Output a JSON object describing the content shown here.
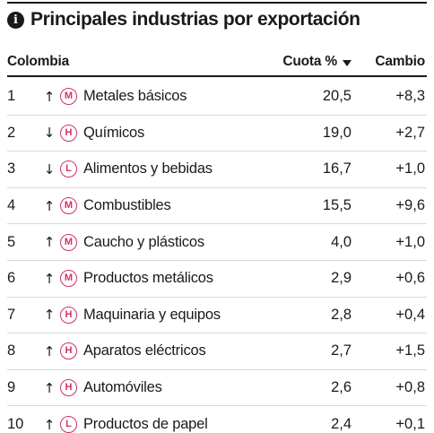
{
  "title": "Principales industrias por exportación",
  "header": {
    "country": "Colombia",
    "share_label": "Cuota %",
    "change_label": "Cambio"
  },
  "colors": {
    "badge": "#d0306a",
    "text": "#1a1a1a",
    "rule": "#d9d9d9"
  },
  "rows": [
    {
      "rank": "1",
      "arrow": "↑",
      "badge": "M",
      "name": "Metales básicos",
      "share": "20,5",
      "change": "+8,3"
    },
    {
      "rank": "2",
      "arrow": "↓",
      "badge": "H",
      "name": "Químicos",
      "share": "19,0",
      "change": "+2,7"
    },
    {
      "rank": "3",
      "arrow": "↓",
      "badge": "L",
      "name": "Alimentos y bebidas",
      "share": "16,7",
      "change": "+1,0"
    },
    {
      "rank": "4",
      "arrow": "↑",
      "badge": "M",
      "name": "Combustibles",
      "share": "15,5",
      "change": "+9,6"
    },
    {
      "rank": "5",
      "arrow": "↑",
      "badge": "M",
      "name": "Caucho y plásticos",
      "share": "4,0",
      "change": "+1,0"
    },
    {
      "rank": "6",
      "arrow": "↑",
      "badge": "M",
      "name": "Productos metálicos",
      "share": "2,9",
      "change": "+0,6"
    },
    {
      "rank": "7",
      "arrow": "↑",
      "badge": "H",
      "name": "Maquinaria y equipos",
      "share": "2,8",
      "change": "+0,4"
    },
    {
      "rank": "8",
      "arrow": "↑",
      "badge": "H",
      "name": "Aparatos eléctricos",
      "share": "2,7",
      "change": "+1,5"
    },
    {
      "rank": "9",
      "arrow": "↑",
      "badge": "H",
      "name": "Automóviles",
      "share": "2,6",
      "change": "+0,8"
    },
    {
      "rank": "10",
      "arrow": "↑",
      "badge": "L",
      "name": "Productos de papel",
      "share": "2,4",
      "change": "+0,1"
    }
  ]
}
